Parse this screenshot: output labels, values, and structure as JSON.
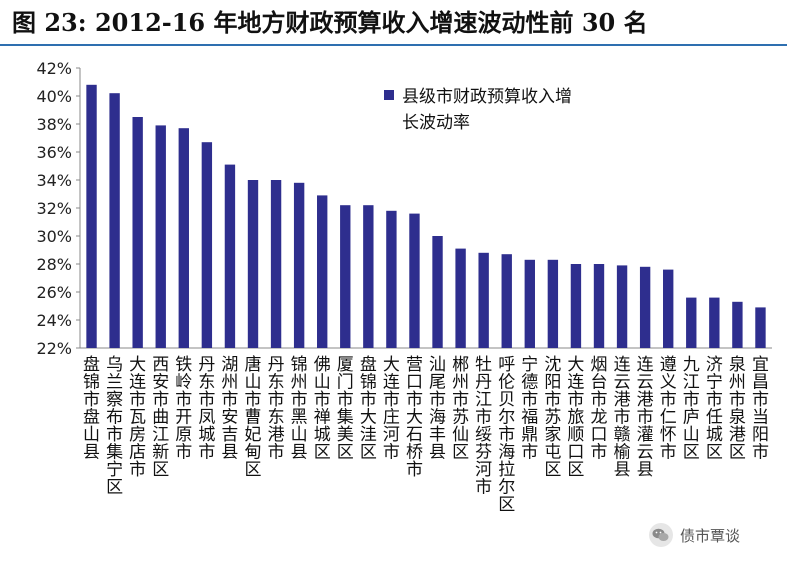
{
  "page": {
    "title": "图 23:  2012-16 年地方财政预算收入增速波动性前 30 名",
    "watermark": "债市覃谈"
  },
  "chart_data": {
    "type": "bar",
    "ylim": [
      22,
      42
    ],
    "yticks": [
      "22%",
      "24%",
      "26%",
      "28%",
      "30%",
      "32%",
      "34%",
      "36%",
      "38%",
      "40%",
      "42%"
    ],
    "legend": "县级市财政预算收入增长波动率",
    "legend_lines": [
      "县级市财政预算收入增",
      "长波动率"
    ],
    "legend_position": "top-right",
    "bar_color": "#2e2e8e",
    "categories": [
      "盘锦市盘山县",
      "乌兰察布市集宁区",
      "大连市瓦房店市",
      "西安市曲江新区",
      "铁岭市开原市",
      "丹东市凤城市",
      "湖州市安吉县",
      "唐山市曹妃甸区",
      "丹东市东港市",
      "锦州市黑山县",
      "佛山市禅城区",
      "厦门市集美区",
      "盘锦市大洼区",
      "大连市庄河市",
      "营口市大石桥市",
      "汕尾市海丰县",
      "郴州市苏仙区",
      "牡丹江市绥芬河市",
      "呼伦贝尔市海拉尔区",
      "宁德市福鼎市",
      "沈阳市苏家屯区",
      "大连市旅顺口区",
      "烟台市龙口市",
      "连云港市赣榆县",
      "连云港市灌云县",
      "遵义市仁怀市",
      "九江市庐山区",
      "济宁市任城区",
      "泉州市泉港区",
      "宜昌市当阳市"
    ],
    "values": [
      40.8,
      40.2,
      38.5,
      37.9,
      37.7,
      36.7,
      35.1,
      34.0,
      34.0,
      33.8,
      32.9,
      32.2,
      32.2,
      31.8,
      31.6,
      30.0,
      29.1,
      28.8,
      28.7,
      28.3,
      28.3,
      28.0,
      28.0,
      27.9,
      27.8,
      27.6,
      25.6,
      25.6,
      25.3,
      24.9
    ]
  }
}
